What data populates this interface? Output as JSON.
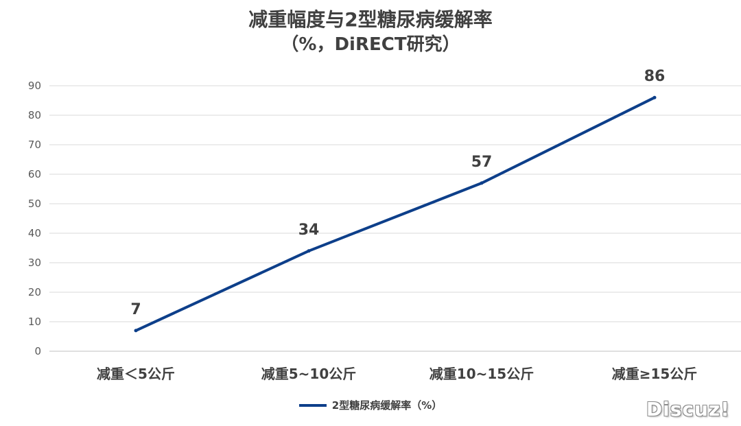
{
  "chart_data": {
    "type": "line",
    "title": "减重幅度与2型糖尿病缓解率",
    "subtitle": "（%，DiRECT研究）",
    "categories": [
      "减重＜5公斤",
      "减重5~10公斤",
      "减重10~15公斤",
      "减重≥15公斤"
    ],
    "series": [
      {
        "name": "2型糖尿病缓解率（%）",
        "values": [
          7,
          34,
          57,
          86
        ],
        "color": "#0d3f8a"
      }
    ],
    "data_labels": [
      "7",
      "34",
      "57",
      "86"
    ],
    "y_ticks": [
      "0",
      "10",
      "20",
      "30",
      "40",
      "50",
      "60",
      "70",
      "80",
      "90"
    ],
    "ylim": [
      0,
      90
    ],
    "xlabel": "",
    "ylabel": "",
    "grid": true,
    "legend_position": "bottom"
  },
  "watermark": "Discuz!"
}
